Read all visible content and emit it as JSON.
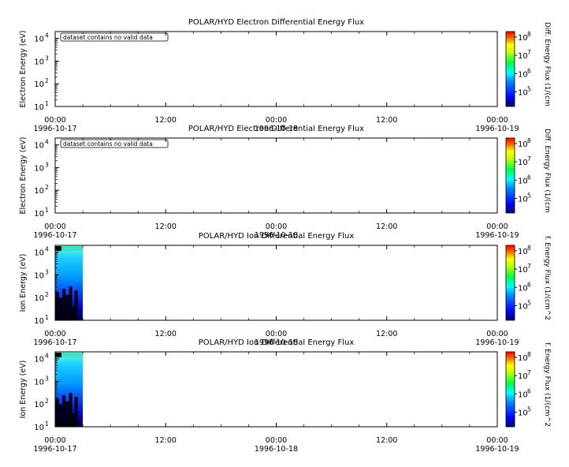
{
  "chart_data": [
    {
      "type": "heatmap",
      "title": "POLAR/HYD  Electron Differential Energy Flux",
      "ylabel": "Electron Energy (eV)",
      "yscale": "log",
      "ylim": [
        10,
        20000
      ],
      "yticks": [
        "10",
        "10",
        "10",
        "10"
      ],
      "ytick_exps": [
        "1",
        "2",
        "3",
        "4"
      ],
      "xticks": [
        {
          "time": "00:00",
          "date": "1996-10-17"
        },
        {
          "time": "12:00",
          "date": ""
        },
        {
          "time": "00:00",
          "date": "1996-10-18"
        },
        {
          "time": "12:00",
          "date": ""
        },
        {
          "time": "00:00",
          "date": "1996-10-19"
        }
      ],
      "notice": "dataset contains no valid data",
      "colorbar": {
        "label": "Diff. Energy Flux (1/(cm",
        "ticks": [
          "10",
          "10",
          "10",
          "10"
        ],
        "tick_exps": [
          "5",
          "6",
          "7",
          "8"
        ]
      },
      "data": []
    },
    {
      "type": "heatmap",
      "title": "POLAR/HYD  Electron Differential Energy Flux",
      "ylabel": "Electron Energy (eV)",
      "yscale": "log",
      "ylim": [
        10,
        20000
      ],
      "yticks": [
        "10",
        "10",
        "10",
        "10"
      ],
      "ytick_exps": [
        "1",
        "2",
        "3",
        "4"
      ],
      "xticks": [
        {
          "time": "00:00",
          "date": "1996-10-17"
        },
        {
          "time": "12:00",
          "date": ""
        },
        {
          "time": "00:00",
          "date": "1996-10-18"
        },
        {
          "time": "12:00",
          "date": ""
        },
        {
          "time": "00:00",
          "date": "1996-10-19"
        }
      ],
      "notice": "dataset contains no valid data",
      "colorbar": {
        "label": "Diff. Energy Flux (1/(cm",
        "ticks": [
          "10",
          "10",
          "10",
          "10"
        ],
        "tick_exps": [
          "5",
          "6",
          "7",
          "8"
        ]
      },
      "data": []
    },
    {
      "type": "heatmap",
      "title": "POLAR/HYD  Ion Differential Energy Flux",
      "ylabel": "Ion Energy (eV)",
      "yscale": "log",
      "ylim": [
        10,
        20000
      ],
      "yticks": [
        "10",
        "10",
        "10",
        "10"
      ],
      "ytick_exps": [
        "1",
        "2",
        "3",
        "4"
      ],
      "xticks": [
        {
          "time": "00:00",
          "date": "1996-10-17"
        },
        {
          "time": "12:00",
          "date": ""
        },
        {
          "time": "00:00",
          "date": "1996-10-18"
        },
        {
          "time": "12:00",
          "date": ""
        },
        {
          "time": "00:00",
          "date": "1996-10-19"
        }
      ],
      "colorbar": {
        "label": "f. Energy Flux (1/(cm^2",
        "ticks": [
          "10",
          "10",
          "10",
          "10"
        ],
        "tick_exps": [
          "5",
          "6",
          "7",
          "8"
        ]
      },
      "data_interval": [
        "1996-10-17 00:00",
        "1996-10-17 03:00"
      ]
    },
    {
      "type": "heatmap",
      "title": "POLAR/HYD  Ion Differential Energy Flux",
      "ylabel": "Ion Energy (eV)",
      "yscale": "log",
      "ylim": [
        10,
        20000
      ],
      "yticks": [
        "10",
        "10",
        "10",
        "10"
      ],
      "ytick_exps": [
        "1",
        "2",
        "3",
        "4"
      ],
      "xticks": [
        {
          "time": "00:00",
          "date": "1996-10-17"
        },
        {
          "time": "12:00",
          "date": ""
        },
        {
          "time": "00:00",
          "date": "1996-10-18"
        },
        {
          "time": "12:00",
          "date": ""
        },
        {
          "time": "00:00",
          "date": "1996-10-19"
        }
      ],
      "colorbar": {
        "label": "f. Energy Flux (1/(cm^2",
        "ticks": [
          "10",
          "10",
          "10",
          "10"
        ],
        "tick_exps": [
          "5",
          "6",
          "7",
          "8"
        ]
      },
      "data_interval": [
        "1996-10-17 00:00",
        "1996-10-17 03:00"
      ]
    }
  ]
}
